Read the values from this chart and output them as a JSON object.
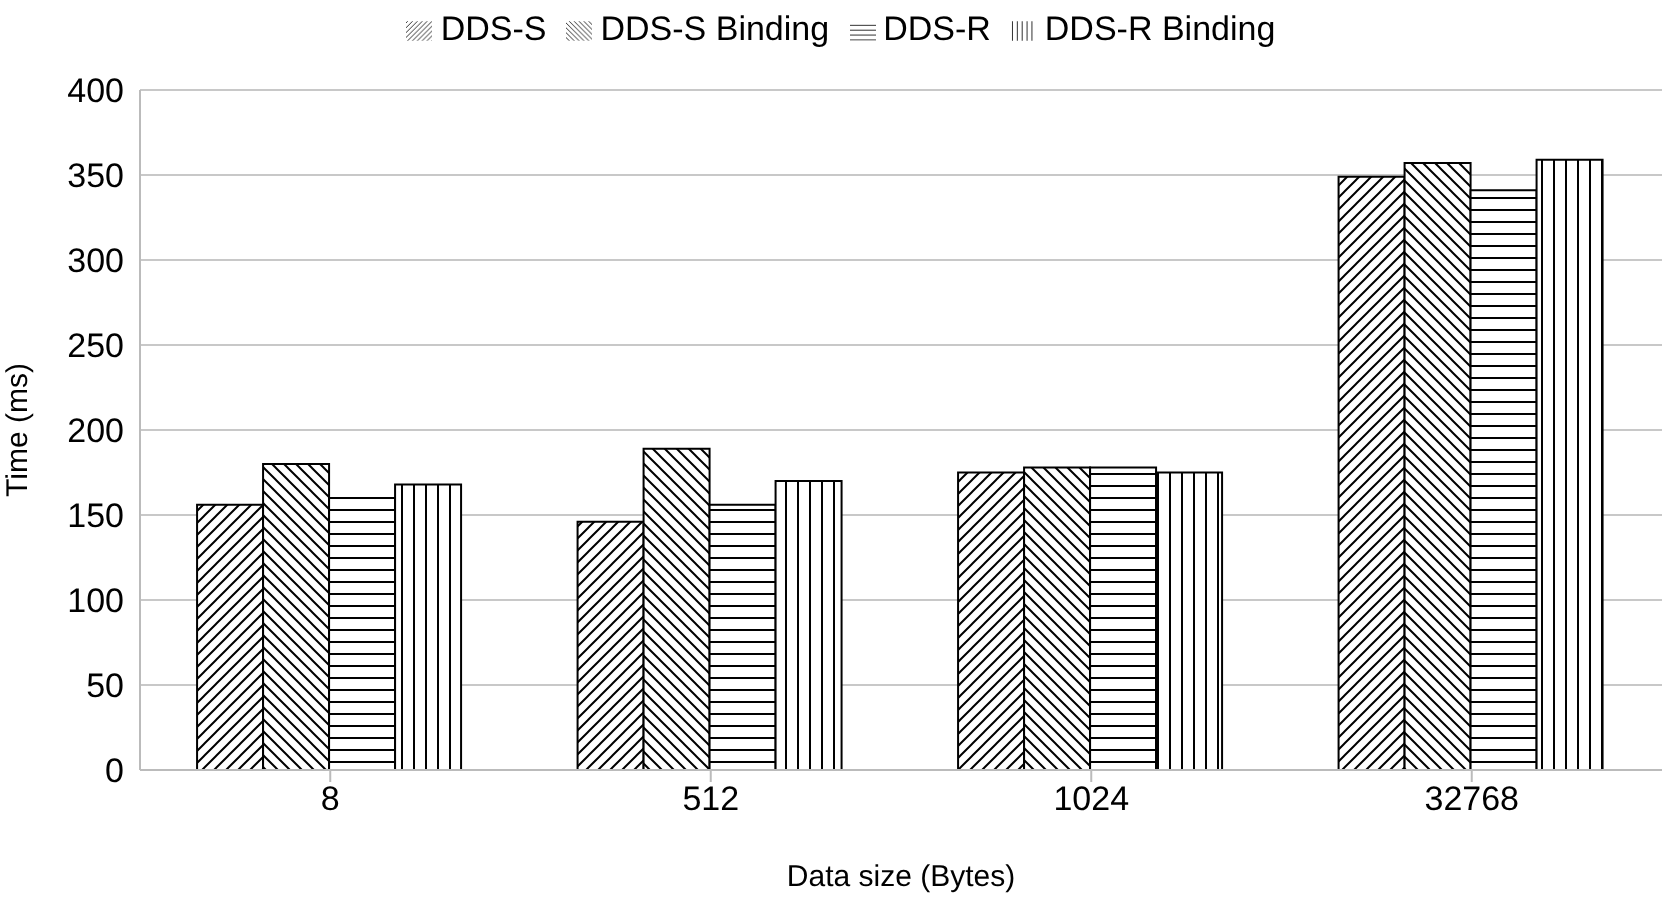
{
  "chart_data": {
    "type": "bar",
    "xlabel": "Data size (Bytes)",
    "ylabel": "Time (ms)",
    "categories": [
      "8",
      "512",
      "1024",
      "32768"
    ],
    "series": [
      {
        "name": "DDS-S",
        "color": "#000000",
        "values": [
          156,
          146,
          175,
          349
        ]
      },
      {
        "name": "DDS-S Binding",
        "color": "#000000",
        "values": [
          180,
          189,
          178,
          357
        ]
      },
      {
        "name": "DDS-R",
        "color": "#000000",
        "values": [
          160,
          156,
          178,
          341
        ]
      },
      {
        "name": "DDS-R Binding",
        "color": "#000000",
        "values": [
          168,
          170,
          175,
          359
        ]
      }
    ],
    "ylim": [
      0,
      400
    ],
    "yticks": [
      0,
      50,
      100,
      150,
      200,
      250,
      300,
      350,
      400
    ],
    "grid": "y",
    "legend": "top"
  }
}
